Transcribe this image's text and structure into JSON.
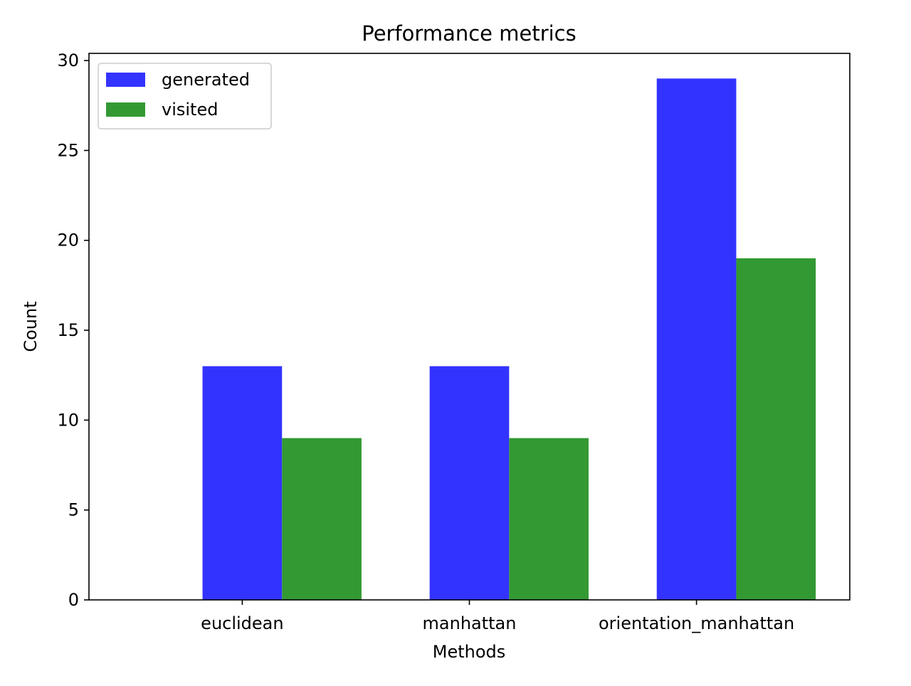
{
  "chart_data": {
    "type": "bar",
    "title": "Performance metrics",
    "xlabel": "Methods",
    "ylabel": "Count",
    "categories": [
      "euclidean",
      "manhattan",
      "orientation_manhattan"
    ],
    "series": [
      {
        "name": "generated",
        "values": [
          13,
          13,
          29
        ],
        "color": "#3333ff"
      },
      {
        "name": "visited",
        "values": [
          9,
          9,
          19
        ],
        "color": "#339933"
      }
    ],
    "ylim": [
      0,
      30.4
    ],
    "yticks": [
      0,
      5,
      10,
      15,
      20,
      25,
      30
    ],
    "grid": false,
    "legend_position": "top-left"
  }
}
